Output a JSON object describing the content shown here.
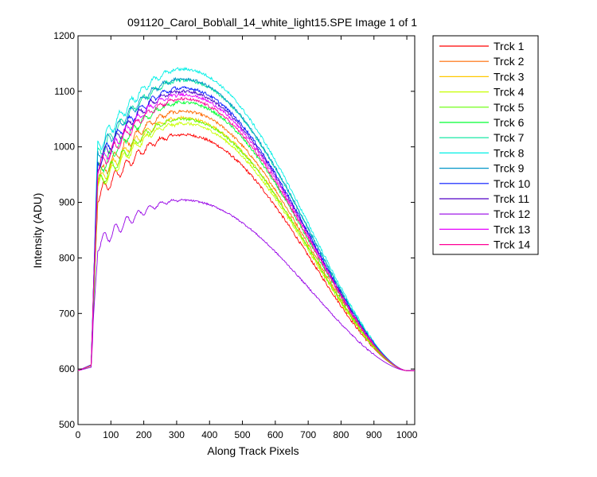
{
  "chart_data": {
    "type": "line",
    "title": "091120_Carol_Bob\\all_14_white_light15.SPE  Image 1 of 1",
    "xlabel": "Along Track Pixels",
    "ylabel": "Intensity (ADU)",
    "xlim": [
      0,
      1024
    ],
    "ylim": [
      500,
      1200
    ],
    "xticks": [
      0,
      100,
      200,
      300,
      400,
      500,
      600,
      700,
      800,
      900,
      1000
    ],
    "yticks": [
      500,
      600,
      700,
      800,
      900,
      1000,
      1100,
      1200
    ],
    "grid": false,
    "legend_position": "outside-right",
    "baseline": 597,
    "series": [
      {
        "name": "Trck 1",
        "color": "#ff0000",
        "peak": 1022
      },
      {
        "name": "Trck 2",
        "color": "#ff6a00",
        "peak": 1064
      },
      {
        "name": "Trck 3",
        "color": "#ffc800",
        "peak": 1052
      },
      {
        "name": "Trck 4",
        "color": "#c8ff00",
        "peak": 1042
      },
      {
        "name": "Trck 5",
        "color": "#64ff00",
        "peak": 1050
      },
      {
        "name": "Trck 6",
        "color": "#00ff32",
        "peak": 1080
      },
      {
        "name": "Trck 7",
        "color": "#00e69b",
        "peak": 1120
      },
      {
        "name": "Trck 8",
        "color": "#00f0e6",
        "peak": 1140
      },
      {
        "name": "Trck 9",
        "color": "#0096c8",
        "peak": 1122
      },
      {
        "name": "Trck 10",
        "color": "#0014ff",
        "peak": 1106
      },
      {
        "name": "Trck 11",
        "color": "#5000c8",
        "peak": 1100
      },
      {
        "name": "Trck 12",
        "color": "#9600e6",
        "peak": 904
      },
      {
        "name": "Trck 13",
        "color": "#e600ff",
        "peak": 1094
      },
      {
        "name": "Trck 14",
        "color": "#ff0096",
        "peak": 1086
      }
    ]
  }
}
